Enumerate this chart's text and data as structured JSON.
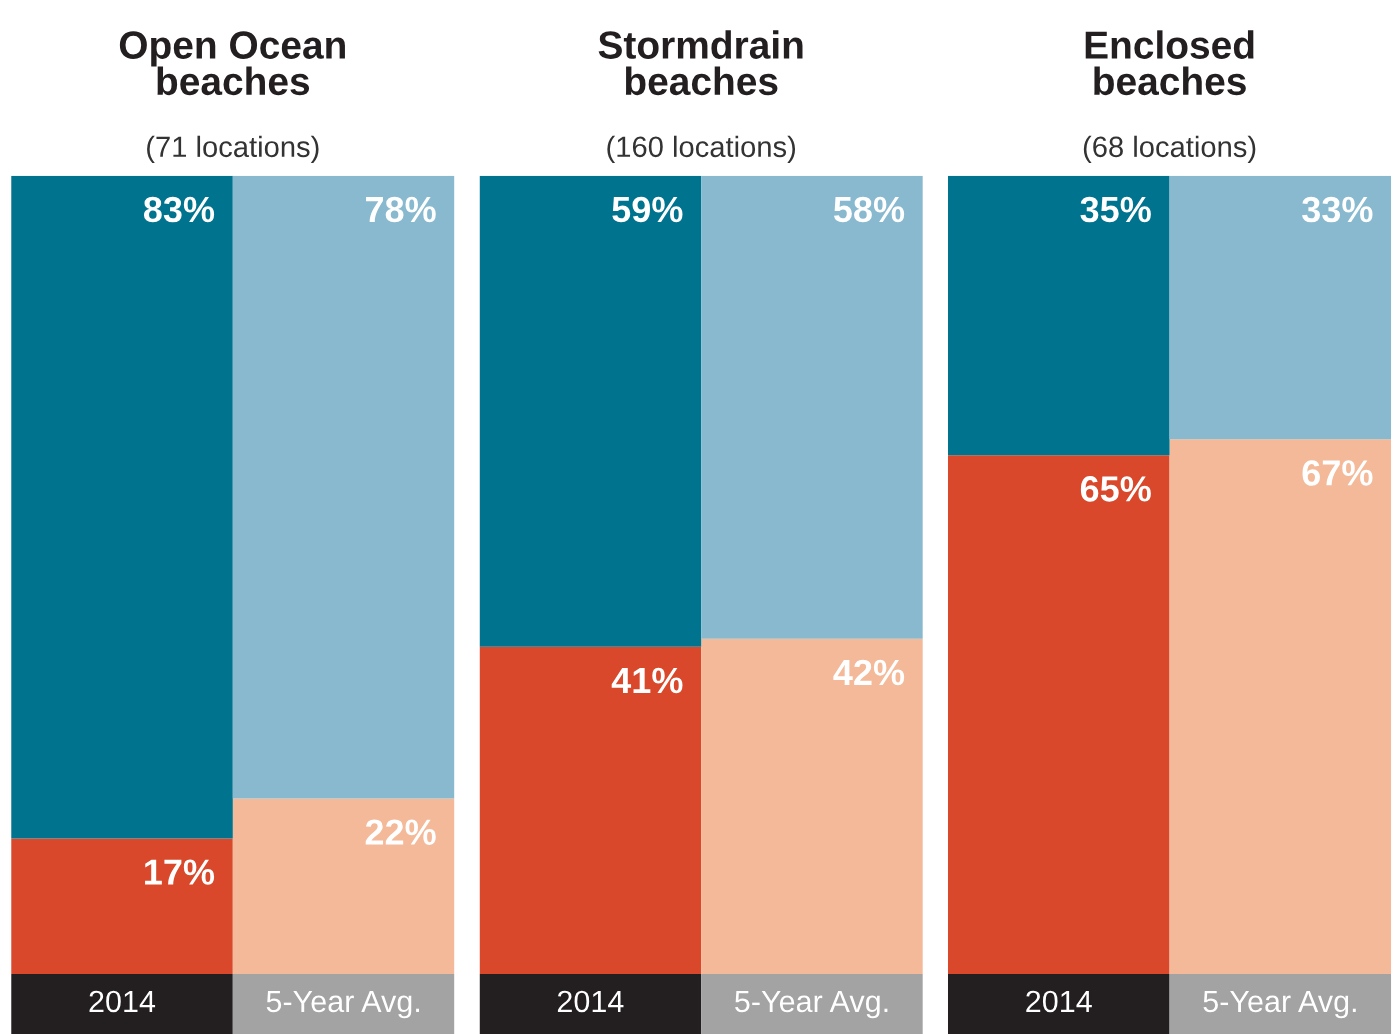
{
  "chart_data": [
    {
      "type": "bar",
      "title": "Open Ocean\nbeaches",
      "subtitle": "(71 locations)",
      "categories": [
        "2014",
        "5-Year Avg."
      ],
      "stacked": true,
      "series": [
        {
          "colors": [
            "#d9482a",
            "#f3b999"
          ],
          "values": [
            17,
            22
          ],
          "value_labels": [
            "17%",
            "22%"
          ]
        },
        {
          "colors": [
            "#00738f",
            "#88b9cf"
          ],
          "values": [
            83,
            78
          ],
          "value_labels": [
            "83%",
            "78%"
          ]
        }
      ]
    },
    {
      "type": "bar",
      "title": "Stormdrain\nbeaches",
      "subtitle": "(160 locations)",
      "categories": [
        "2014",
        "5-Year Avg."
      ],
      "stacked": true,
      "series": [
        {
          "colors": [
            "#d9482a",
            "#f3b999"
          ],
          "values": [
            41,
            42
          ],
          "value_labels": [
            "41%",
            "42%"
          ]
        },
        {
          "colors": [
            "#00738f",
            "#88b9cf"
          ],
          "values": [
            59,
            58
          ],
          "value_labels": [
            "59%",
            "58%"
          ]
        }
      ]
    },
    {
      "type": "bar",
      "title": "Enclosed\nbeaches",
      "subtitle": "(68 locations)",
      "categories": [
        "2014",
        "5-Year Avg."
      ],
      "stacked": true,
      "series": [
        {
          "colors": [
            "#d9482a",
            "#f3b999"
          ],
          "values": [
            65,
            67
          ],
          "value_labels": [
            "65%",
            "67%"
          ]
        },
        {
          "colors": [
            "#00738f",
            "#88b9cf"
          ],
          "values": [
            35,
            33
          ],
          "value_labels": [
            "35%",
            "33%"
          ]
        }
      ]
    }
  ]
}
